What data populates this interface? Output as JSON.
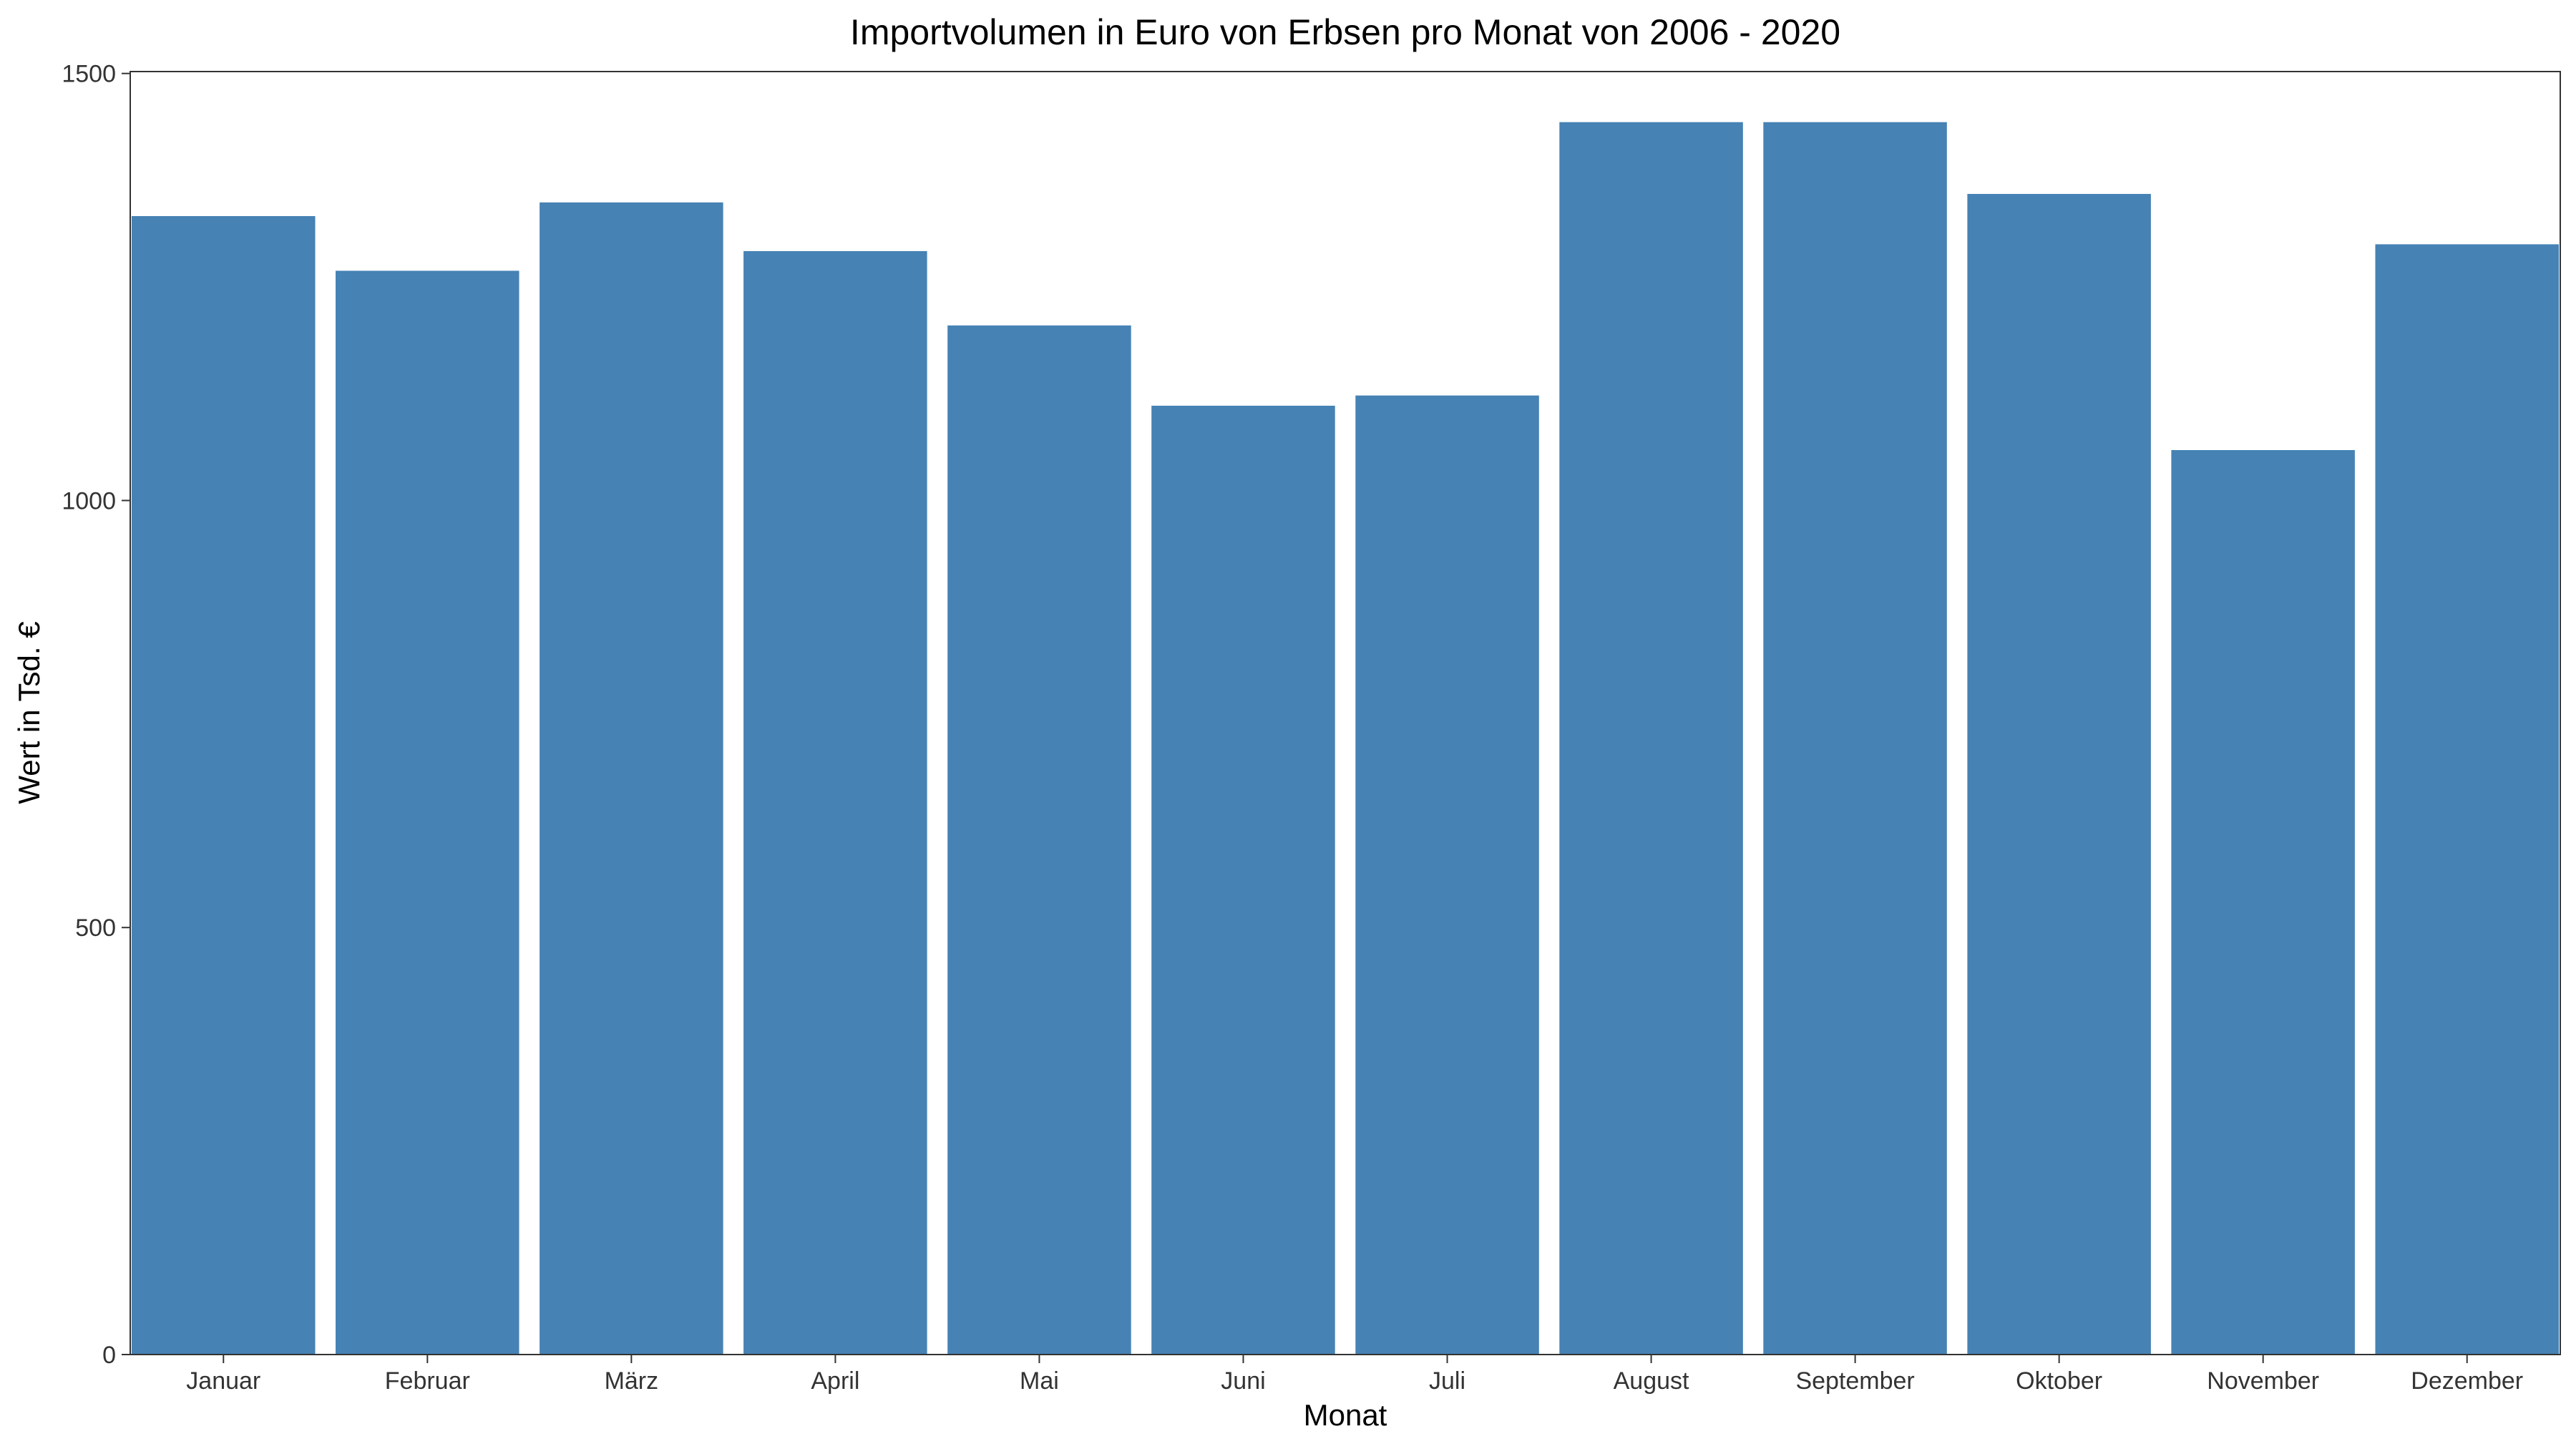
{
  "chart_data": {
    "type": "bar",
    "title": "Importvolumen in Euro von Erbsen pro Monat von 2006 - 2020",
    "xlabel": "Monat",
    "ylabel": "Wert in Tsd. €",
    "categories": [
      "Januar",
      "Februar",
      "März",
      "April",
      "Mai",
      "Juni",
      "Juli",
      "August",
      "September",
      "Oktober",
      "November",
      "Dezember"
    ],
    "values": [
      1333,
      1269,
      1349,
      1292,
      1205,
      1111,
      1123,
      1443,
      1443,
      1359,
      1059,
      1300
    ],
    "ylim": [
      0,
      1500
    ],
    "yticks": [
      0,
      500,
      1000,
      1500
    ],
    "bar_color": "#4682b4",
    "grid": false,
    "legend": "none"
  }
}
